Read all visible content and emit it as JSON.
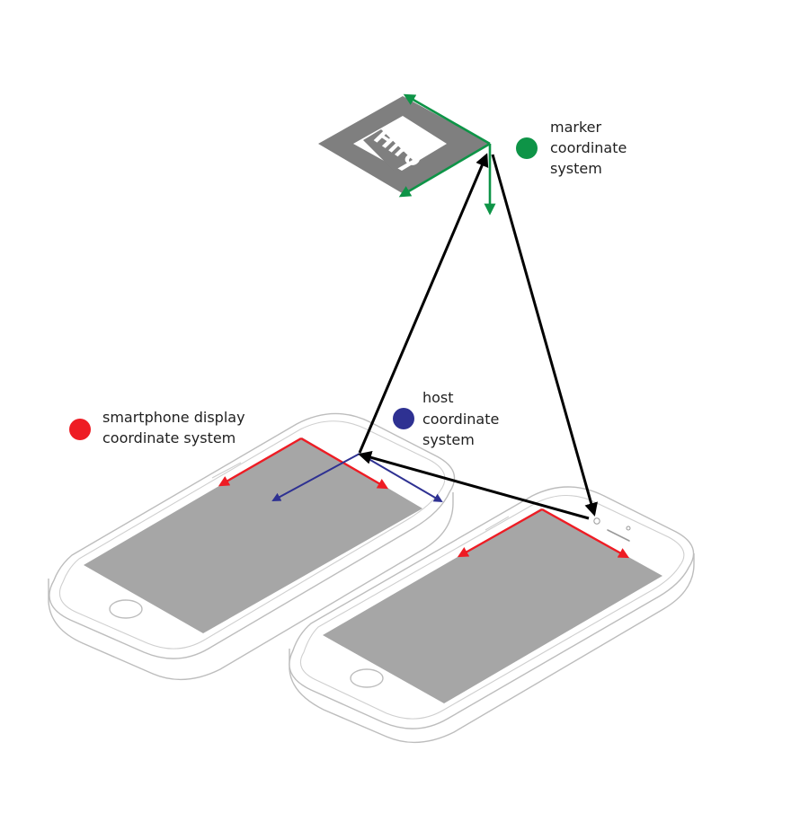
{
  "marker": {
    "text": "Hiro"
  },
  "legend": {
    "marker": {
      "lines": [
        "marker",
        "coordinate",
        "system"
      ],
      "color": "#0e9447"
    },
    "host": {
      "lines": [
        "host",
        "coordinate",
        "system"
      ],
      "color": "#2e3192"
    },
    "display": {
      "lines": [
        "smartphone display",
        "coordinate system"
      ],
      "color": "#ee1c24"
    }
  },
  "colors": {
    "marker_axes": "#0e9447",
    "host_axes": "#2e3192",
    "display_axes": "#ee1c24",
    "transform_arrows": "#000000",
    "screen_fill": "#a6a6a6",
    "phone_outline": "#bdbdbd",
    "marker_fill": "#7f7f7f"
  },
  "icons": {
    "phone_left": "smartphone-icon",
    "phone_right": "smartphone-icon",
    "marker": "ar-marker-icon"
  }
}
